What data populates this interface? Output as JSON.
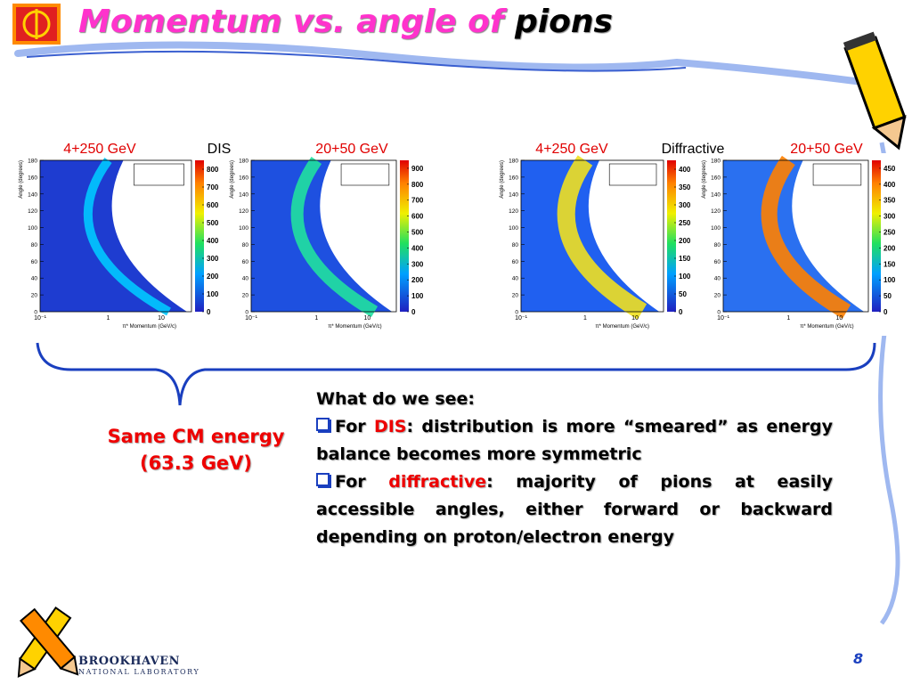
{
  "header": {
    "title": "Momentum vs. angle of",
    "title_emphasis": "pions"
  },
  "groups": [
    {
      "label": "DIS",
      "panels": [
        {
          "label": "4+250 GeV",
          "y_axis_label": "Angle (degrees)",
          "x_axis_label": "π* Momentum (GeV/c)",
          "yticks": [
            0,
            20,
            40,
            60,
            80,
            100,
            120,
            140,
            160,
            180
          ],
          "xticks": [
            "10⁻¹",
            "1",
            "10"
          ],
          "colorbar_ticks": [
            0,
            100,
            200,
            300,
            400,
            500,
            600,
            700,
            800
          ]
        },
        {
          "label": "20+50 GeV",
          "y_axis_label": "Angle (degrees)",
          "x_axis_label": "π* Momentum (GeV/c)",
          "yticks": [
            0,
            20,
            40,
            60,
            80,
            100,
            120,
            140,
            160,
            180
          ],
          "xticks": [
            "10⁻¹",
            "1",
            "10"
          ],
          "colorbar_ticks": [
            0,
            100,
            200,
            300,
            400,
            500,
            600,
            700,
            800,
            900
          ]
        }
      ]
    },
    {
      "label": "Diffractive",
      "panels": [
        {
          "label": "4+250 GeV",
          "y_axis_label": "Angle (degrees)",
          "x_axis_label": "π* Momentum (GeV/c)",
          "yticks": [
            0,
            20,
            40,
            60,
            80,
            100,
            120,
            140,
            160,
            180
          ],
          "xticks": [
            "10⁻¹",
            "1",
            "10"
          ],
          "colorbar_ticks": [
            0,
            50,
            100,
            150,
            200,
            250,
            300,
            350,
            400
          ]
        },
        {
          "label": "20+50 GeV",
          "y_axis_label": "Angle (degrees)",
          "x_axis_label": "π* Momentum (GeV/c)",
          "yticks": [
            0,
            20,
            40,
            60,
            80,
            100,
            120,
            140,
            160,
            180
          ],
          "xticks": [
            "10⁻¹",
            "1",
            "10"
          ],
          "colorbar_ticks": [
            0,
            50,
            100,
            150,
            200,
            250,
            300,
            350,
            400,
            450
          ]
        }
      ]
    }
  ],
  "brace_label": {
    "line1": "Same CM energy",
    "line2": "(63.3 GeV)"
  },
  "body": {
    "heading": "What do we see:",
    "bullets": [
      {
        "lead": "For",
        "term": "DIS",
        "text": ": distribution is more “smeared” as energy balance becomes more symmetric"
      },
      {
        "lead": "For",
        "term": "diffractive",
        "text": ": majority of pions at easily accessible angles, either forward or backward depending on proton/electron energy"
      }
    ]
  },
  "footer": {
    "logo_line1": "BROOKHAVEN",
    "logo_line2": "NATIONAL LABORATORY",
    "page_number": "8"
  }
}
